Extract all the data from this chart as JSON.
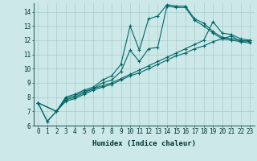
{
  "xlabel": "Humidex (Indice chaleur)",
  "bg_color": "#cce8e8",
  "grid_color": "#aacccc",
  "line_color": "#006666",
  "xlim": [
    -0.5,
    23.5
  ],
  "ylim": [
    6,
    14.6
  ],
  "yticks": [
    6,
    7,
    8,
    9,
    10,
    11,
    12,
    13,
    14
  ],
  "xticks": [
    0,
    1,
    2,
    3,
    4,
    5,
    6,
    7,
    8,
    9,
    10,
    11,
    12,
    13,
    14,
    15,
    16,
    17,
    18,
    19,
    20,
    21,
    22,
    23
  ],
  "series": [
    {
      "x": [
        0,
        1,
        2,
        3,
        4,
        5,
        6,
        7,
        8,
        9,
        10,
        11,
        12,
        13,
        14,
        15,
        16,
        17,
        18,
        19,
        20,
        21,
        22,
        23
      ],
      "y": [
        7.6,
        6.3,
        7.0,
        8.0,
        8.2,
        8.5,
        8.7,
        9.2,
        9.5,
        10.3,
        13.0,
        11.3,
        13.5,
        13.7,
        14.5,
        14.4,
        14.4,
        13.5,
        13.2,
        12.6,
        12.2,
        12.1,
        12.0,
        11.9
      ]
    },
    {
      "x": [
        0,
        1,
        2,
        3,
        4,
        5,
        6,
        7,
        8,
        9,
        10,
        11,
        12,
        13,
        14,
        15,
        16,
        17,
        18,
        19,
        20,
        21,
        22,
        23
      ],
      "y": [
        7.6,
        6.3,
        7.0,
        7.9,
        8.1,
        8.4,
        8.6,
        9.0,
        9.2,
        9.8,
        11.3,
        10.5,
        11.4,
        11.5,
        14.4,
        14.3,
        14.3,
        13.4,
        13.0,
        12.5,
        12.1,
        12.0,
        11.9,
        11.8
      ]
    },
    {
      "x": [
        0,
        2,
        3,
        4,
        5,
        6,
        7,
        8,
        9,
        10,
        11,
        12,
        13,
        14,
        15,
        16,
        17,
        18,
        19,
        20,
        21,
        22,
        23
      ],
      "y": [
        7.6,
        7.0,
        7.8,
        8.0,
        8.3,
        8.6,
        8.8,
        9.0,
        9.3,
        9.6,
        9.9,
        10.2,
        10.5,
        10.8,
        11.1,
        11.4,
        11.7,
        12.0,
        13.3,
        12.5,
        12.4,
        12.1,
        12.0
      ]
    },
    {
      "x": [
        0,
        2,
        3,
        4,
        5,
        6,
        7,
        8,
        9,
        10,
        11,
        12,
        13,
        14,
        15,
        16,
        17,
        18,
        19,
        20,
        21,
        22,
        23
      ],
      "y": [
        7.6,
        7.0,
        7.7,
        7.9,
        8.2,
        8.5,
        8.7,
        8.9,
        9.2,
        9.5,
        9.7,
        10.0,
        10.3,
        10.6,
        10.9,
        11.1,
        11.4,
        11.6,
        11.9,
        12.1,
        12.3,
        11.9,
        12.0
      ]
    }
  ]
}
